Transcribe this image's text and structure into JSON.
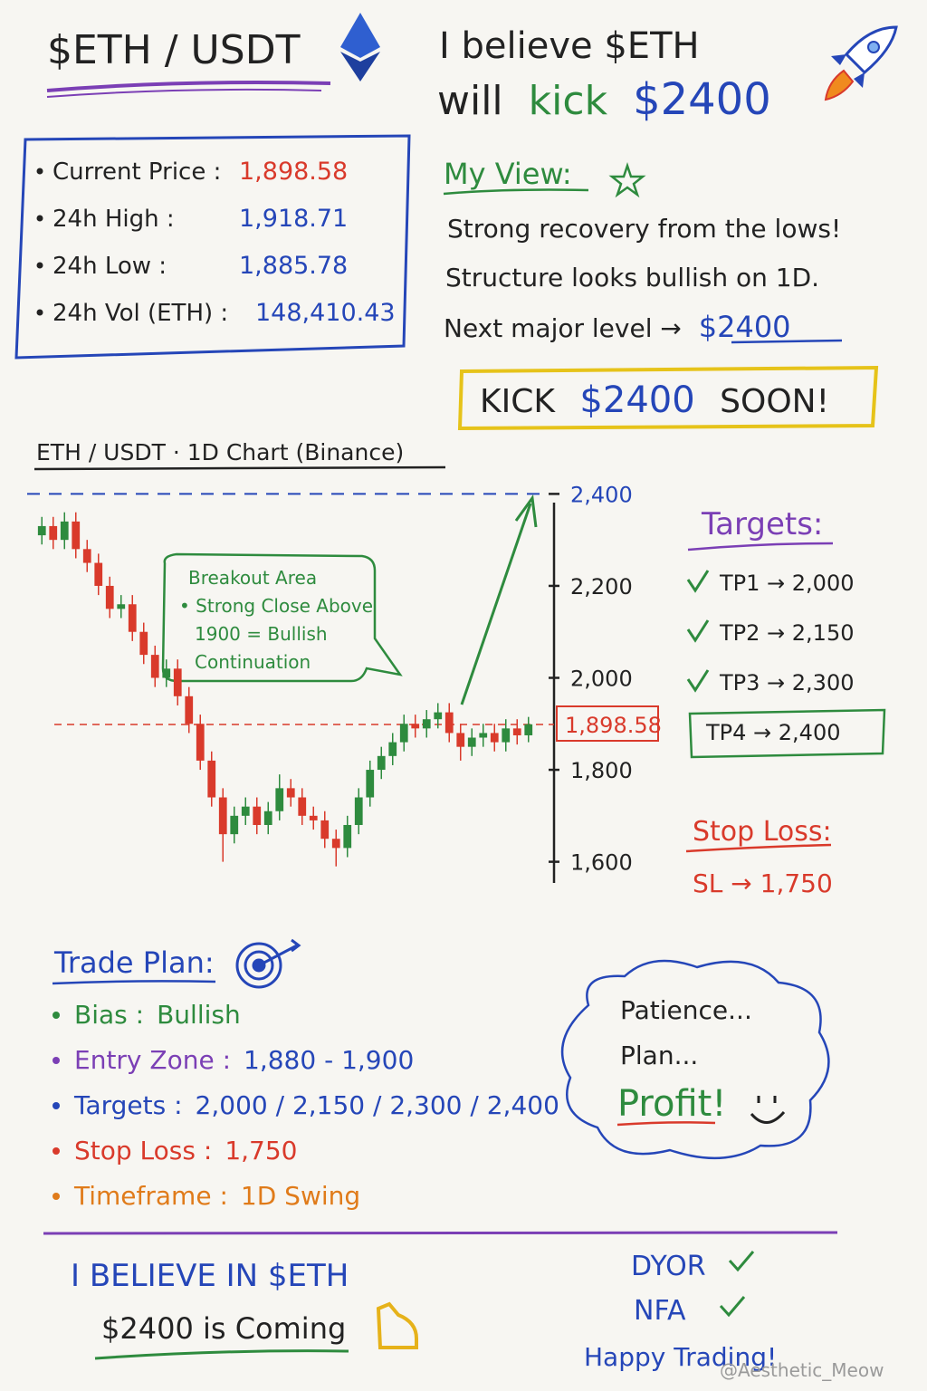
{
  "header": {
    "pair": "$ETH / USDT",
    "belief_line1": "I believe $ETH",
    "belief_will": "will",
    "belief_kick": "kick",
    "belief_target": "$2400"
  },
  "stats": [
    {
      "label": "Current Price :",
      "value": "1,898.58"
    },
    {
      "label": "24h High :",
      "value": "1,918.71"
    },
    {
      "label": "24h Low :",
      "value": "1,885.78"
    },
    {
      "label": "24h Vol (ETH) :",
      "value": "148,410.43"
    }
  ],
  "view": {
    "title": "My View:",
    "lines": [
      "Strong recovery from the lows!",
      "Structure looks bullish on 1D."
    ],
    "next_label": "Next major level →",
    "next_value": "$2400"
  },
  "banner": {
    "kick": "KICK",
    "target": "$2400",
    "soon": "SOON!"
  },
  "chart_data": {
    "type": "candlestick",
    "title": "ETH / USDT · 1D Chart (Binance)",
    "open": [
      2310,
      2330,
      2300,
      2340,
      2280,
      2250,
      2200,
      2150,
      2160,
      2100,
      2050,
      2000,
      2020,
      1960,
      1900,
      1820,
      1740,
      1660,
      1700,
      1720,
      1680,
      1710,
      1760,
      1740,
      1700,
      1690,
      1650,
      1630,
      1680,
      1740,
      1800,
      1830,
      1860,
      1900,
      1890,
      1910,
      1925,
      1880,
      1850,
      1870,
      1880,
      1860,
      1890,
      1875
    ],
    "high": [
      2350,
      2350,
      2360,
      2360,
      2300,
      2270,
      2220,
      2180,
      2180,
      2120,
      2070,
      2040,
      2040,
      1980,
      1920,
      1840,
      1760,
      1720,
      1740,
      1740,
      1730,
      1790,
      1780,
      1760,
      1720,
      1710,
      1670,
      1700,
      1760,
      1820,
      1850,
      1880,
      1920,
      1920,
      1930,
      1945,
      1945,
      1900,
      1890,
      1900,
      1900,
      1910,
      1910,
      1915
    ],
    "low": [
      2290,
      2280,
      2280,
      2260,
      2230,
      2180,
      2130,
      2130,
      2080,
      2030,
      1980,
      1980,
      1940,
      1880,
      1800,
      1720,
      1600,
      1640,
      1680,
      1660,
      1660,
      1690,
      1720,
      1680,
      1670,
      1630,
      1590,
      1610,
      1660,
      1720,
      1780,
      1810,
      1840,
      1870,
      1870,
      1890,
      1860,
      1820,
      1830,
      1850,
      1840,
      1840,
      1855,
      1860
    ],
    "close": [
      2330,
      2300,
      2340,
      2280,
      2250,
      2200,
      2150,
      2160,
      2100,
      2050,
      2000,
      2020,
      1960,
      1900,
      1820,
      1740,
      1660,
      1700,
      1720,
      1680,
      1710,
      1760,
      1740,
      1700,
      1690,
      1650,
      1630,
      1680,
      1740,
      1800,
      1830,
      1860,
      1900,
      1890,
      1910,
      1925,
      1880,
      1850,
      1870,
      1880,
      1860,
      1890,
      1875,
      1899
    ],
    "up_color": "#2e8b3e",
    "down_color": "#d93a2b",
    "ylim": [
      1550,
      2450
    ],
    "yticks": [
      {
        "value": 1600,
        "label": "1,600"
      },
      {
        "value": 1800,
        "label": "1,800"
      },
      {
        "value": 2000,
        "label": "2,000"
      },
      {
        "value": 2200,
        "label": "2,200"
      },
      {
        "value": 2400,
        "label": "2,400"
      }
    ],
    "target_line": 2400,
    "price_line": {
      "value": 1898.58,
      "label": "1,898.58"
    },
    "callout": [
      "Breakout Area",
      "• Strong Close Above",
      "1900 = Bullish",
      "Continuation"
    ]
  },
  "targets": {
    "title": "Targets:",
    "items": [
      "TP1 → 2,000",
      "TP2 → 2,150",
      "TP3 → 2,300",
      "TP4 → 2,400"
    ]
  },
  "stop_loss": {
    "title": "Stop Loss:",
    "value": "SL → 1,750"
  },
  "trade_plan": {
    "title": "Trade Plan:",
    "items": [
      {
        "label": "Bias :",
        "value": "Bullish",
        "color": "#2e8b3e",
        "value_color": "#2e8b3e"
      },
      {
        "label": "Entry Zone :",
        "value": "1,880 - 1,900",
        "color": "#7b3fb5",
        "value_color": "#2546b8"
      },
      {
        "label": "Targets :",
        "value": "2,000 / 2,150 / 2,300 / 2,400",
        "color": "#2546b8",
        "value_color": "#2546b8"
      },
      {
        "label": "Stop Loss :",
        "value": "1,750",
        "color": "#d93a2b",
        "value_color": "#d93a2b"
      },
      {
        "label": "Timeframe :",
        "value": "1D Swing",
        "color": "#e07b1a",
        "value_color": "#e07b1a"
      }
    ]
  },
  "cloud": [
    "Patience...",
    "Plan...",
    "Profit!"
  ],
  "footer": {
    "believe": "I BELIEVE IN $ETH",
    "coming": "$2400 is Coming",
    "dyor": "DYOR",
    "nfa": "NFA",
    "happy": "Happy Trading!",
    "watermark": "@Aesthetic_Meow"
  }
}
